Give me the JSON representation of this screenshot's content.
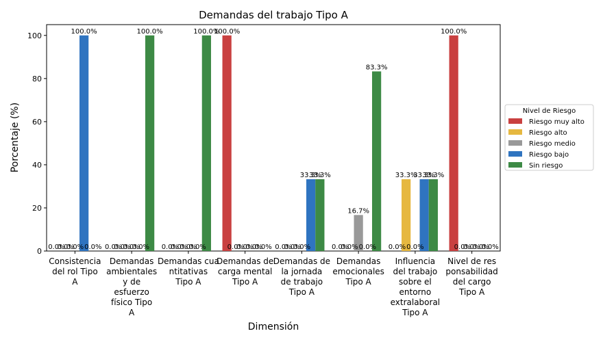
{
  "chart_data": {
    "type": "bar",
    "title": "Demandas del trabajo Tipo A",
    "xlabel": "Dimensión",
    "ylabel": "Porcentaje (%)",
    "ylim": [
      0,
      105
    ],
    "yticks": [
      0,
      20,
      40,
      60,
      80,
      100
    ],
    "grid": false,
    "legend_position": "right",
    "legend_title": "Nivel de Riesgo",
    "categories": [
      "Consistencia del rol Tipo A",
      "Demandas ambientales y de esfuerzo físico Tipo A",
      "Demandas cuantitativas Tipo A",
      "Demandas de carga mental Tipo A",
      "Demandas de la jornada de trabajo Tipo A",
      "Demandas emocionales Tipo A",
      "Influencia del trabajo sobre el entorno extralaboral Tipo A",
      "Nivel de responsabilidad del cargo Tipo A"
    ],
    "category_label_lines": [
      [
        "Consistencia",
        "del rol Tipo",
        "A"
      ],
      [
        "Demandas",
        "ambientales",
        "y de",
        "esfuerzo",
        "físico Tipo",
        "A"
      ],
      [
        "Demandas cua",
        "ntitativas",
        "Tipo A"
      ],
      [
        "Demandas de",
        "carga mental",
        "Tipo A"
      ],
      [
        "Demandas de",
        "la jornada",
        "de trabajo",
        "Tipo A"
      ],
      [
        "Demandas",
        "emocionales",
        "Tipo A"
      ],
      [
        "Influencia",
        "del trabajo",
        "sobre el",
        "entorno",
        "extralaboral",
        "Tipo A"
      ],
      [
        "Nivel de res",
        "ponsabilidad",
        "del cargo",
        "Tipo A"
      ]
    ],
    "series": [
      {
        "name": "Riesgo muy alto",
        "color": "#c94040",
        "values": [
          0,
          0,
          0,
          100,
          0,
          0,
          0,
          100
        ]
      },
      {
        "name": "Riesgo alto",
        "color": "#e6b840",
        "values": [
          0,
          0,
          0,
          0,
          0,
          0,
          33.3,
          0
        ]
      },
      {
        "name": "Riesgo medio",
        "color": "#999999",
        "values": [
          0,
          0,
          0,
          0,
          0,
          16.7,
          0,
          0
        ]
      },
      {
        "name": "Riesgo bajo",
        "color": "#2f74c0",
        "values": [
          100,
          0,
          0,
          0,
          33.3,
          0,
          33.3,
          0
        ]
      },
      {
        "name": "Sin riesgo",
        "color": "#3d8a45",
        "values": [
          0,
          100,
          100,
          0,
          33.3,
          83.3,
          33.3,
          0
        ]
      }
    ],
    "value_suffix": "%"
  }
}
